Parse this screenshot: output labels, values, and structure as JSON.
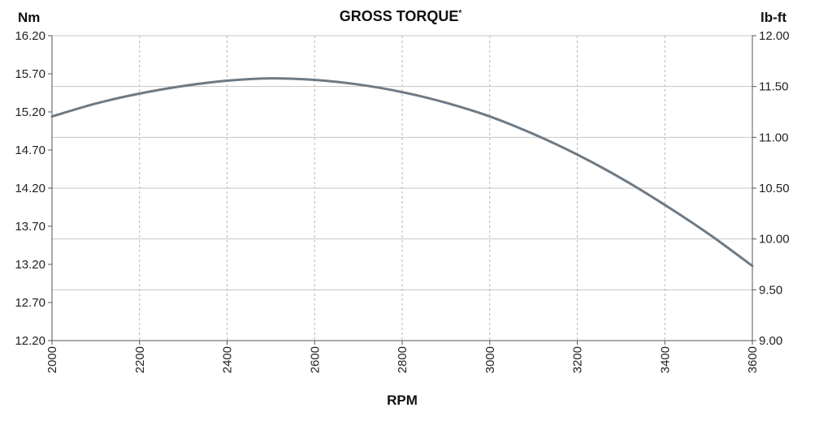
{
  "chart_data": {
    "type": "line",
    "title": "GROSS TORQUE",
    "title_mark": "*",
    "xlabel": "RPM",
    "ylabel_left": "Nm",
    "ylabel_right": "lb-ft",
    "x_ticks": [
      "2000",
      "2200",
      "2400",
      "2600",
      "2800",
      "3000",
      "3200",
      "3400",
      "3600"
    ],
    "y_left_ticks": [
      "12.20",
      "12.70",
      "13.20",
      "13.70",
      "14.20",
      "14.70",
      "15.20",
      "15.70",
      "16.20"
    ],
    "y_right_ticks": [
      "9.00",
      "9.50",
      "10.00",
      "10.50",
      "11.00",
      "11.50",
      "12.00"
    ],
    "xlim": [
      2000,
      3600
    ],
    "ylim_left": [
      12.2,
      16.2
    ],
    "ylim_right": [
      9.0,
      12.0
    ],
    "grid": true,
    "series": [
      {
        "color": "#6e7a84",
        "x": [
          2000,
          2100,
          2200,
          2300,
          2400,
          2500,
          2600,
          2700,
          2800,
          2900,
          3000,
          3100,
          3200,
          3300,
          3400,
          3500,
          3600
        ],
        "y": [
          15.14,
          15.31,
          15.44,
          15.54,
          15.61,
          15.64,
          15.62,
          15.56,
          15.46,
          15.32,
          15.14,
          14.91,
          14.64,
          14.33,
          13.98,
          13.6,
          13.18
        ]
      }
    ]
  }
}
